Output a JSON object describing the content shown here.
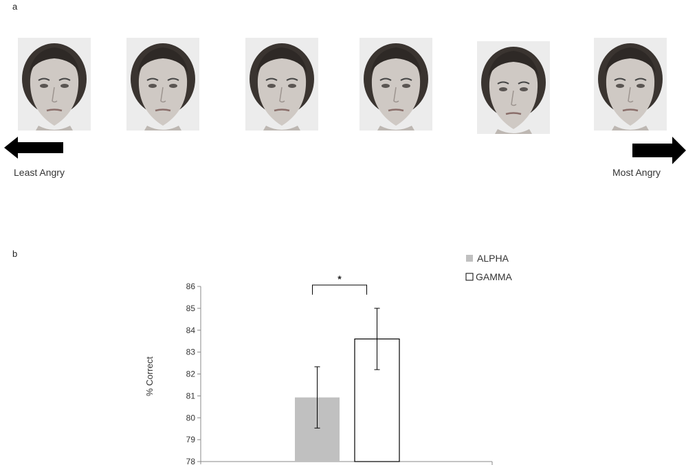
{
  "panel_a": {
    "letter": "a",
    "faces": [
      {
        "name": "face-1"
      },
      {
        "name": "face-2"
      },
      {
        "name": "face-3"
      },
      {
        "name": "face-4"
      },
      {
        "name": "face-5"
      },
      {
        "name": "face-6"
      }
    ],
    "scale": {
      "left_label": "Least Angry",
      "right_label": "Most Angry",
      "left_icon": "arrow-left-icon",
      "right_icon": "arrow-right-icon"
    }
  },
  "panel_b": {
    "letter": "b"
  },
  "chart_data": {
    "type": "bar",
    "title": "",
    "xlabel": "",
    "ylabel": "% Correct",
    "ylim": [
      78,
      86
    ],
    "yticks": [
      78,
      79,
      80,
      81,
      82,
      83,
      84,
      85,
      86
    ],
    "series": [
      {
        "name": "ALPHA",
        "value": 80.93,
        "error": 1.4,
        "color": "#c0c0c0",
        "fill": "solid-grey"
      },
      {
        "name": "GAMMA",
        "value": 83.6,
        "error": 1.4,
        "color": "#ffffff",
        "fill": "white-outline"
      }
    ],
    "significance": {
      "label": "*",
      "between": [
        "ALPHA",
        "GAMMA"
      ]
    },
    "legend_placement": "top-right",
    "grid": false
  }
}
